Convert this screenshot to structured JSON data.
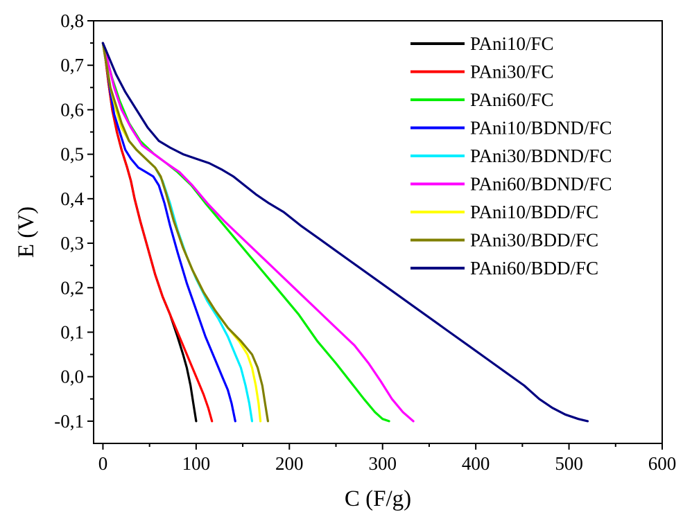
{
  "chart_data": {
    "type": "line",
    "title": "",
    "xlabel": "C (F/g)",
    "ylabel": "E (V)",
    "xlim": [
      -10,
      600
    ],
    "ylim": [
      -0.15,
      0.8
    ],
    "xticks": [
      0,
      100,
      200,
      300,
      400,
      500,
      600
    ],
    "xtick_labels": [
      "0",
      "100",
      "200",
      "300",
      "400",
      "500",
      "600"
    ],
    "yticks": [
      -0.1,
      0.0,
      0.1,
      0.2,
      0.3,
      0.4,
      0.5,
      0.6,
      0.7,
      0.8
    ],
    "ytick_labels": [
      "-0,1",
      "0,0",
      "0,1",
      "0,2",
      "0,3",
      "0,4",
      "0,5",
      "0,6",
      "0,7",
      "0,8"
    ],
    "grid": false,
    "legend_position": "top-right",
    "series": [
      {
        "name": "PAni10/FC",
        "color": "#000000",
        "points": [
          [
            0,
            0.75
          ],
          [
            3,
            0.71
          ],
          [
            6,
            0.66
          ],
          [
            10,
            0.6
          ],
          [
            15,
            0.55
          ],
          [
            20,
            0.51
          ],
          [
            26,
            0.47
          ],
          [
            30,
            0.44
          ],
          [
            34,
            0.4
          ],
          [
            40,
            0.35
          ],
          [
            48,
            0.29
          ],
          [
            56,
            0.23
          ],
          [
            64,
            0.18
          ],
          [
            72,
            0.14
          ],
          [
            80,
            0.09
          ],
          [
            86,
            0.05
          ],
          [
            90,
            0.02
          ],
          [
            94,
            -0.02
          ],
          [
            97,
            -0.06
          ],
          [
            100,
            -0.1
          ]
        ]
      },
      {
        "name": "PAni30/FC",
        "color": "#ff0000",
        "points": [
          [
            0,
            0.75
          ],
          [
            3,
            0.71
          ],
          [
            6,
            0.66
          ],
          [
            10,
            0.6
          ],
          [
            15,
            0.55
          ],
          [
            20,
            0.51
          ],
          [
            26,
            0.47
          ],
          [
            30,
            0.44
          ],
          [
            34,
            0.4
          ],
          [
            40,
            0.35
          ],
          [
            48,
            0.29
          ],
          [
            56,
            0.23
          ],
          [
            64,
            0.18
          ],
          [
            74,
            0.13
          ],
          [
            84,
            0.08
          ],
          [
            94,
            0.03
          ],
          [
            102,
            -0.01
          ],
          [
            108,
            -0.04
          ],
          [
            113,
            -0.07
          ],
          [
            117,
            -0.1
          ]
        ]
      },
      {
        "name": "PAni60/FC",
        "color": "#00ee00",
        "points": [
          [
            0,
            0.75
          ],
          [
            5,
            0.71
          ],
          [
            10,
            0.67
          ],
          [
            18,
            0.62
          ],
          [
            28,
            0.57
          ],
          [
            40,
            0.53
          ],
          [
            55,
            0.5
          ],
          [
            68,
            0.48
          ],
          [
            80,
            0.46
          ],
          [
            95,
            0.43
          ],
          [
            110,
            0.39
          ],
          [
            130,
            0.34
          ],
          [
            150,
            0.29
          ],
          [
            170,
            0.24
          ],
          [
            190,
            0.19
          ],
          [
            210,
            0.14
          ],
          [
            230,
            0.08
          ],
          [
            250,
            0.03
          ],
          [
            265,
            -0.01
          ],
          [
            280,
            -0.05
          ],
          [
            292,
            -0.08
          ],
          [
            300,
            -0.095
          ],
          [
            307,
            -0.1
          ]
        ]
      },
      {
        "name": "PAni10/BDND/FC",
        "color": "#0000ff",
        "points": [
          [
            0,
            0.75
          ],
          [
            4,
            0.7
          ],
          [
            8,
            0.64
          ],
          [
            12,
            0.59
          ],
          [
            18,
            0.55
          ],
          [
            24,
            0.51
          ],
          [
            30,
            0.49
          ],
          [
            38,
            0.47
          ],
          [
            46,
            0.46
          ],
          [
            54,
            0.45
          ],
          [
            60,
            0.43
          ],
          [
            66,
            0.39
          ],
          [
            72,
            0.34
          ],
          [
            80,
            0.28
          ],
          [
            90,
            0.21
          ],
          [
            100,
            0.15
          ],
          [
            110,
            0.09
          ],
          [
            120,
            0.04
          ],
          [
            128,
            0.0
          ],
          [
            134,
            -0.03
          ],
          [
            138,
            -0.06
          ],
          [
            142,
            -0.1
          ]
        ]
      },
      {
        "name": "PAni30/BDND/FC",
        "color": "#00eeff",
        "points": [
          [
            0,
            0.75
          ],
          [
            4,
            0.7
          ],
          [
            8,
            0.65
          ],
          [
            14,
            0.6
          ],
          [
            20,
            0.56
          ],
          [
            28,
            0.53
          ],
          [
            36,
            0.51
          ],
          [
            46,
            0.49
          ],
          [
            56,
            0.47
          ],
          [
            64,
            0.44
          ],
          [
            72,
            0.39
          ],
          [
            80,
            0.33
          ],
          [
            90,
            0.27
          ],
          [
            100,
            0.22
          ],
          [
            112,
            0.17
          ],
          [
            124,
            0.13
          ],
          [
            134,
            0.09
          ],
          [
            142,
            0.05
          ],
          [
            148,
            0.02
          ],
          [
            153,
            -0.02
          ],
          [
            157,
            -0.06
          ],
          [
            160,
            -0.1
          ]
        ]
      },
      {
        "name": "PAni60/BDND/FC",
        "color": "#ff00ff",
        "points": [
          [
            0,
            0.75
          ],
          [
            5,
            0.71
          ],
          [
            12,
            0.65
          ],
          [
            20,
            0.6
          ],
          [
            30,
            0.56
          ],
          [
            42,
            0.52
          ],
          [
            55,
            0.5
          ],
          [
            68,
            0.48
          ],
          [
            82,
            0.46
          ],
          [
            96,
            0.43
          ],
          [
            112,
            0.39
          ],
          [
            130,
            0.35
          ],
          [
            150,
            0.31
          ],
          [
            170,
            0.27
          ],
          [
            190,
            0.23
          ],
          [
            210,
            0.19
          ],
          [
            230,
            0.15
          ],
          [
            250,
            0.11
          ],
          [
            270,
            0.07
          ],
          [
            285,
            0.03
          ],
          [
            298,
            -0.01
          ],
          [
            310,
            -0.05
          ],
          [
            322,
            -0.08
          ],
          [
            333,
            -0.1
          ]
        ]
      },
      {
        "name": "PAni10/BDD/FC",
        "color": "#ffff00",
        "points": [
          [
            0,
            0.75
          ],
          [
            4,
            0.7
          ],
          [
            8,
            0.65
          ],
          [
            14,
            0.6
          ],
          [
            20,
            0.56
          ],
          [
            28,
            0.53
          ],
          [
            36,
            0.51
          ],
          [
            46,
            0.49
          ],
          [
            56,
            0.47
          ],
          [
            62,
            0.45
          ],
          [
            68,
            0.41
          ],
          [
            76,
            0.35
          ],
          [
            86,
            0.29
          ],
          [
            96,
            0.24
          ],
          [
            108,
            0.19
          ],
          [
            120,
            0.15
          ],
          [
            134,
            0.11
          ],
          [
            146,
            0.08
          ],
          [
            155,
            0.05
          ],
          [
            160,
            0.02
          ],
          [
            164,
            -0.02
          ],
          [
            167,
            -0.06
          ],
          [
            169,
            -0.1
          ]
        ]
      },
      {
        "name": "PAni30/BDD/FC",
        "color": "#808000",
        "points": [
          [
            0,
            0.75
          ],
          [
            4,
            0.7
          ],
          [
            8,
            0.65
          ],
          [
            14,
            0.61
          ],
          [
            20,
            0.57
          ],
          [
            28,
            0.53
          ],
          [
            36,
            0.51
          ],
          [
            46,
            0.49
          ],
          [
            56,
            0.47
          ],
          [
            62,
            0.45
          ],
          [
            68,
            0.41
          ],
          [
            76,
            0.35
          ],
          [
            86,
            0.29
          ],
          [
            96,
            0.24
          ],
          [
            108,
            0.19
          ],
          [
            120,
            0.15
          ],
          [
            134,
            0.11
          ],
          [
            148,
            0.08
          ],
          [
            160,
            0.05
          ],
          [
            166,
            0.02
          ],
          [
            171,
            -0.02
          ],
          [
            174,
            -0.06
          ],
          [
            177,
            -0.1
          ]
        ]
      },
      {
        "name": "PAni60/BDD/FC",
        "color": "#000080",
        "points": [
          [
            0,
            0.75
          ],
          [
            6,
            0.72
          ],
          [
            14,
            0.68
          ],
          [
            24,
            0.64
          ],
          [
            36,
            0.6
          ],
          [
            48,
            0.56
          ],
          [
            60,
            0.53
          ],
          [
            72,
            0.515
          ],
          [
            86,
            0.5
          ],
          [
            100,
            0.49
          ],
          [
            114,
            0.48
          ],
          [
            128,
            0.465
          ],
          [
            140,
            0.45
          ],
          [
            152,
            0.43
          ],
          [
            164,
            0.41
          ],
          [
            178,
            0.39
          ],
          [
            194,
            0.37
          ],
          [
            212,
            0.34
          ],
          [
            232,
            0.31
          ],
          [
            252,
            0.28
          ],
          [
            272,
            0.25
          ],
          [
            292,
            0.22
          ],
          [
            312,
            0.19
          ],
          [
            332,
            0.16
          ],
          [
            352,
            0.13
          ],
          [
            372,
            0.1
          ],
          [
            392,
            0.07
          ],
          [
            412,
            0.04
          ],
          [
            432,
            0.01
          ],
          [
            452,
            -0.02
          ],
          [
            468,
            -0.05
          ],
          [
            482,
            -0.07
          ],
          [
            496,
            -0.085
          ],
          [
            510,
            -0.095
          ],
          [
            520,
            -0.1
          ]
        ]
      }
    ]
  }
}
